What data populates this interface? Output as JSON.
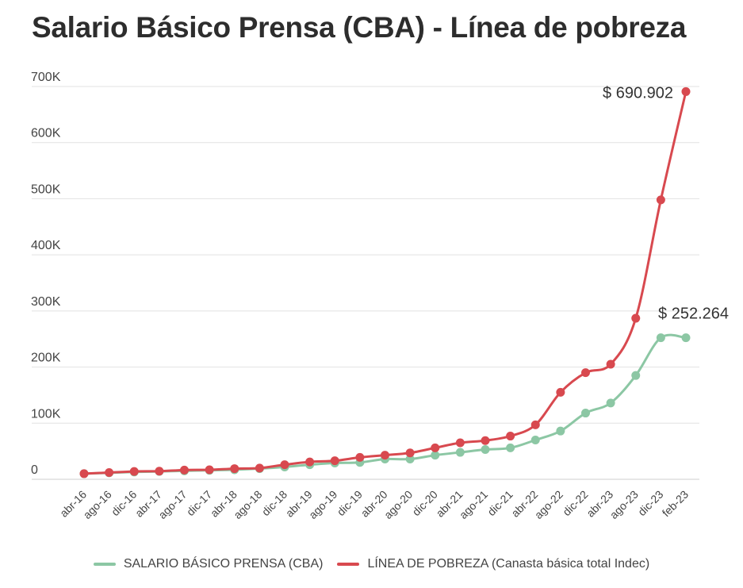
{
  "title": "Salario Básico Prensa (CBA) - Línea de pobreza",
  "chart_data": {
    "type": "line",
    "title": "Salario Básico Prensa (CBA) - Línea de pobreza",
    "xlabel": "",
    "ylabel": "",
    "ylim": [
      0,
      700000
    ],
    "y_ticks": [
      {
        "value": 0,
        "label": "0"
      },
      {
        "value": 100000,
        "label": "100K"
      },
      {
        "value": 200000,
        "label": "200K"
      },
      {
        "value": 300000,
        "label": "300K"
      },
      {
        "value": 400000,
        "label": "400K"
      },
      {
        "value": 500000,
        "label": "500K"
      },
      {
        "value": 600000,
        "label": "600K"
      },
      {
        "value": 700000,
        "label": "700K"
      }
    ],
    "grid": true,
    "legend_position": "bottom",
    "categories": [
      "abr-16",
      "ago-16",
      "dic-16",
      "abr-17",
      "ago-17",
      "dic-17",
      "abr-18",
      "ago-18",
      "dic-18",
      "abr-19",
      "ago-19",
      "dic-19",
      "abr-20",
      "ago-20",
      "dic-20",
      "abr-21",
      "ago-21",
      "dic-21",
      "abr-22",
      "ago-22",
      "dic-22",
      "abr-23",
      "ago-23",
      "dic-23",
      "feb-23"
    ],
    "series": [
      {
        "name": "SALARIO BÁSICO PRENSA (CBA)",
        "color": "#8cc7a4",
        "values": [
          10000,
          11500,
          13000,
          14000,
          15000,
          16000,
          17000,
          19000,
          22000,
          26000,
          29000,
          30000,
          36000,
          36000,
          43000,
          48000,
          53000,
          56000,
          70000,
          86000,
          118000,
          136000,
          185000,
          252264,
          252264
        ],
        "end_label": "$ 252.264"
      },
      {
        "name": "LÍNEA DE POBREZA (Canasta básica total Indec)",
        "color": "#d8494f",
        "values": [
          10000,
          12000,
          14000,
          14500,
          16500,
          17000,
          19000,
          20000,
          26000,
          31000,
          33000,
          39000,
          43000,
          47000,
          56000,
          65000,
          69000,
          77000,
          97000,
          155000,
          190000,
          205000,
          287000,
          498000,
          690902
        ],
        "end_label": "$ 690.902"
      }
    ]
  }
}
